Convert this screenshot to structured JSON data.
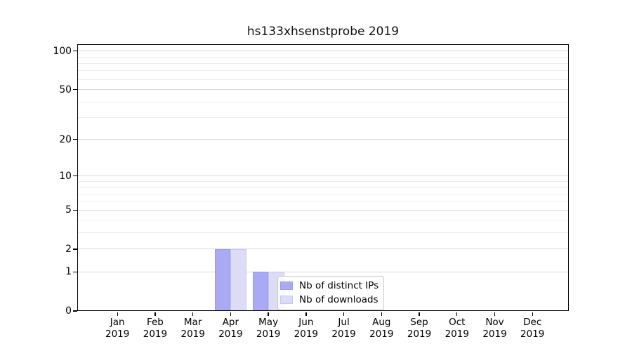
{
  "chart_data": {
    "type": "bar",
    "title": "hs133xhsenstprobe 2019",
    "categories": [
      "Jan",
      "Feb",
      "Mar",
      "Apr",
      "May",
      "Jun",
      "Jul",
      "Aug",
      "Sep",
      "Oct",
      "Nov",
      "Dec"
    ],
    "x_tick_second_line": "2019",
    "series": [
      {
        "name": "Nb of distinct IPs",
        "color": "#a9a9f4",
        "edge_color": "#9a9aef",
        "values": [
          0,
          0,
          0,
          2,
          1,
          0,
          0,
          0,
          0,
          0,
          0,
          0
        ]
      },
      {
        "name": "Nb of downloads",
        "color": "#dcdcf7",
        "edge_color": "#c6c6f2",
        "values": [
          0,
          0,
          0,
          2,
          1,
          0,
          0,
          0,
          0,
          0,
          0,
          0
        ]
      }
    ],
    "yscale": "log1p",
    "ylim": [
      0,
      114
    ],
    "y_tick_values": [
      0,
      1,
      2,
      5,
      10,
      20,
      50,
      100
    ],
    "y_tick_labels": [
      "0",
      "1",
      "2",
      "5",
      "10",
      "20",
      "50",
      "100"
    ],
    "minor_gridline_values": [
      3,
      4,
      6,
      7,
      8,
      9,
      30,
      40,
      60,
      70,
      80,
      90
    ],
    "grid": "horizontal-only",
    "legend_position": "lower center, inside plot",
    "colors": {
      "axis": "#000000",
      "grid_major": "#d9d9d9",
      "grid_minor": "#ededed",
      "background": "#ffffff"
    }
  }
}
